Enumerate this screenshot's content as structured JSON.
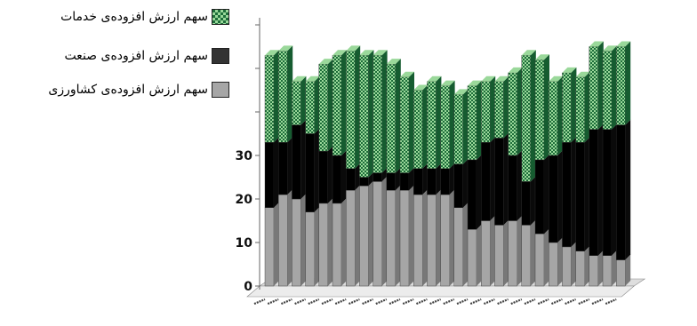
{
  "legend": {
    "services": "سهم ارزش افزوده‌ی خدمات",
    "industry": "سهم ارزش افزوده‌ی صنعت",
    "agriculture": "سهم ارزش افزوده‌ی کشاورزی"
  },
  "colors": {
    "services_dark": "#1e6e3a",
    "services_light": "#9ad89a",
    "industry": "#000000",
    "agriculture": "#a6a6a6",
    "floor": "#dedede"
  },
  "chart_data": {
    "type": "bar",
    "stacked": true,
    "three_d": true,
    "ylim": [
      0,
      65
    ],
    "yticks": [
      0,
      10,
      20,
      30
    ],
    "grid": false,
    "legend_position": "top-left",
    "series": [
      {
        "name": "سهم ارزش افزوده‌ی کشاورزی",
        "values": [
          18,
          21,
          20,
          17,
          19,
          19,
          22,
          23,
          24,
          22,
          22,
          21,
          21,
          21,
          18,
          13,
          15,
          14,
          15,
          14,
          12,
          10,
          9,
          8,
          7,
          7,
          6
        ]
      },
      {
        "name": "سهم ارزش افزوده‌ی صنعت",
        "values": [
          15,
          12,
          17,
          18,
          12,
          11,
          5,
          2,
          2,
          4,
          4,
          6,
          6,
          6,
          10,
          16,
          18,
          20,
          15,
          10,
          17,
          20,
          24,
          25,
          29,
          29,
          31
        ]
      },
      {
        "name": "سهم ارزش افزوده‌ی خدمات",
        "values": [
          20,
          21,
          10,
          12,
          20,
          23,
          27,
          28,
          27,
          25,
          22,
          18,
          20,
          19,
          16,
          17,
          14,
          13,
          19,
          29,
          23,
          17,
          16,
          15,
          19,
          18,
          18
        ]
      }
    ]
  }
}
